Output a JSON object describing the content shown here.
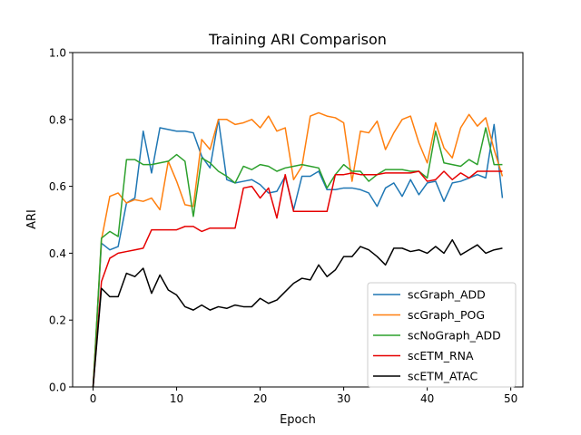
{
  "chart_data": {
    "type": "line",
    "title": "Training ARI Comparison",
    "xlabel": "Epoch",
    "ylabel": "ARI",
    "xlim": [
      -2.45,
      51.45
    ],
    "ylim": [
      0.0,
      1.0
    ],
    "xticks": [
      0,
      10,
      20,
      30,
      40,
      50
    ],
    "yticks": [
      0.0,
      0.2,
      0.4,
      0.6,
      0.8,
      1.0
    ],
    "grid": false,
    "legend_position": "lower right",
    "x": [
      0,
      1,
      2,
      3,
      4,
      5,
      6,
      7,
      8,
      9,
      10,
      11,
      12,
      13,
      14,
      15,
      16,
      17,
      18,
      19,
      20,
      21,
      22,
      23,
      24,
      25,
      26,
      27,
      28,
      29,
      30,
      31,
      32,
      33,
      34,
      35,
      36,
      37,
      38,
      39,
      40,
      41,
      42,
      43,
      44,
      45,
      46,
      47,
      48,
      49
    ],
    "series": [
      {
        "name": "scGraph_ADD",
        "color": "#1f77b4",
        "values": [
          0.0,
          0.43,
          0.41,
          0.42,
          0.55,
          0.565,
          0.765,
          0.64,
          0.775,
          0.77,
          0.765,
          0.765,
          0.76,
          0.69,
          0.655,
          0.8,
          0.62,
          0.61,
          0.615,
          0.62,
          0.605,
          0.58,
          0.585,
          0.63,
          0.53,
          0.63,
          0.63,
          0.645,
          0.59,
          0.59,
          0.595,
          0.595,
          0.59,
          0.58,
          0.54,
          0.595,
          0.61,
          0.57,
          0.62,
          0.575,
          0.61,
          0.615,
          0.555,
          0.61,
          0.615,
          0.625,
          0.635,
          0.625,
          0.785,
          0.565
        ]
      },
      {
        "name": "scGraph_POG",
        "color": "#ff7f0e",
        "values": [
          0.0,
          0.44,
          0.57,
          0.58,
          0.55,
          0.56,
          0.555,
          0.565,
          0.53,
          0.675,
          0.615,
          0.545,
          0.54,
          0.74,
          0.71,
          0.8,
          0.8,
          0.785,
          0.79,
          0.8,
          0.775,
          0.81,
          0.765,
          0.775,
          0.62,
          0.66,
          0.81,
          0.82,
          0.81,
          0.805,
          0.79,
          0.615,
          0.765,
          0.76,
          0.795,
          0.71,
          0.76,
          0.8,
          0.81,
          0.73,
          0.67,
          0.79,
          0.715,
          0.685,
          0.775,
          0.815,
          0.78,
          0.805,
          0.71,
          0.63
        ]
      },
      {
        "name": "scNoGraph_ADD",
        "color": "#2ca02c",
        "values": [
          0.0,
          0.445,
          0.465,
          0.45,
          0.68,
          0.68,
          0.665,
          0.665,
          0.67,
          0.675,
          0.695,
          0.675,
          0.51,
          0.685,
          0.67,
          0.645,
          0.63,
          0.61,
          0.66,
          0.65,
          0.665,
          0.66,
          0.645,
          0.655,
          0.66,
          0.665,
          0.66,
          0.655,
          0.595,
          0.635,
          0.665,
          0.645,
          0.645,
          0.615,
          0.635,
          0.65,
          0.65,
          0.65,
          0.645,
          0.645,
          0.625,
          0.765,
          0.67,
          0.665,
          0.66,
          0.68,
          0.665,
          0.775,
          0.665,
          0.665
        ]
      },
      {
        "name": "scETM_RNA",
        "color": "#e60000",
        "values": [
          0.0,
          0.315,
          0.385,
          0.4,
          0.405,
          0.41,
          0.415,
          0.47,
          0.47,
          0.47,
          0.47,
          0.48,
          0.48,
          0.465,
          0.475,
          0.475,
          0.475,
          0.475,
          0.595,
          0.6,
          0.565,
          0.595,
          0.505,
          0.635,
          0.525,
          0.525,
          0.525,
          0.525,
          0.525,
          0.635,
          0.635,
          0.64,
          0.635,
          0.635,
          0.635,
          0.64,
          0.64,
          0.64,
          0.64,
          0.645,
          0.615,
          0.62,
          0.645,
          0.62,
          0.64,
          0.625,
          0.645,
          0.645,
          0.645,
          0.645
        ]
      },
      {
        "name": "scETM_ATAC",
        "color": "#000000",
        "values": [
          0.0,
          0.295,
          0.27,
          0.27,
          0.34,
          0.33,
          0.355,
          0.28,
          0.335,
          0.29,
          0.275,
          0.24,
          0.23,
          0.245,
          0.23,
          0.24,
          0.235,
          0.245,
          0.24,
          0.24,
          0.265,
          0.25,
          0.26,
          0.285,
          0.31,
          0.325,
          0.32,
          0.365,
          0.33,
          0.35,
          0.39,
          0.39,
          0.42,
          0.41,
          0.39,
          0.365,
          0.415,
          0.415,
          0.405,
          0.41,
          0.4,
          0.42,
          0.4,
          0.44,
          0.395,
          0.41,
          0.425,
          0.4,
          0.41,
          0.415
        ]
      }
    ]
  }
}
